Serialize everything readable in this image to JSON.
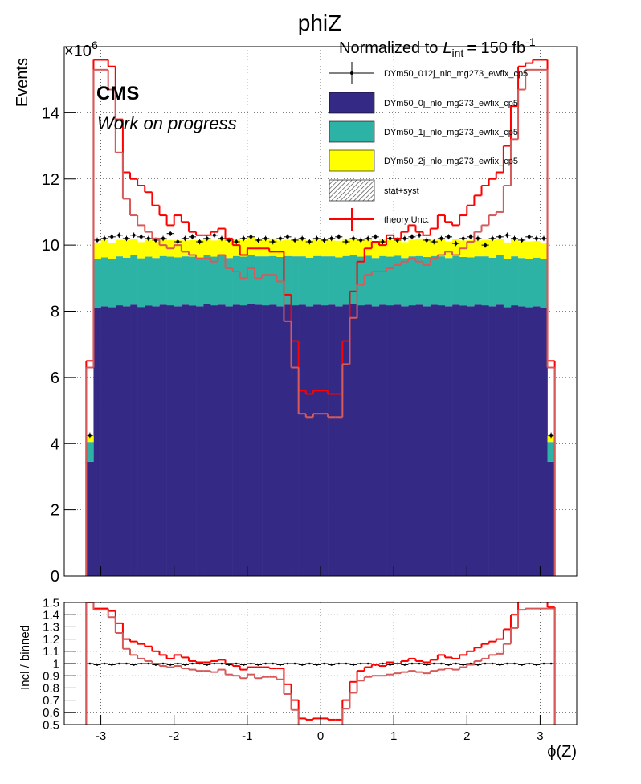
{
  "chart_data": [
    {
      "type": "histogram",
      "title": "phiZ",
      "norm_prefix": "Normalized to",
      "norm_L": "L",
      "norm_sub": "int",
      "norm_mid": "= 150 fb",
      "norm_sup": "-1",
      "multiplier": "×10",
      "multiplier_exp": "6",
      "experiment": "CMS",
      "status": "Work on progress",
      "ylabel": "Events",
      "bins": [
        -3.2,
        -3.1,
        -3.0,
        -2.9,
        -2.8,
        -2.7,
        -2.6,
        -2.5,
        -2.4,
        -2.3,
        -2.2,
        -2.1,
        -2.0,
        -1.9,
        -1.8,
        -1.7,
        -1.6,
        -1.5,
        -1.4,
        -1.3,
        -1.2,
        -1.1,
        -1.0,
        -0.9,
        -0.8,
        -0.7,
        -0.6,
        -0.5,
        -0.4,
        -0.3,
        -0.2,
        -0.1,
        0.0,
        0.1,
        0.2,
        0.3,
        0.4,
        0.5,
        0.6,
        0.7,
        0.8,
        0.9,
        1.0,
        1.1,
        1.2,
        1.3,
        1.4,
        1.5,
        1.6,
        1.7,
        1.8,
        1.9,
        2.0,
        2.1,
        2.2,
        2.3,
        2.4,
        2.5,
        2.6,
        2.7,
        2.8,
        2.9,
        3.0,
        3.1,
        3.2
      ],
      "xlim": [
        -3.5,
        3.5
      ],
      "ylim": [
        0,
        16
      ],
      "yticks": [
        0,
        2,
        4,
        6,
        8,
        10,
        12,
        14
      ],
      "grid": true,
      "series": [
        {
          "name": "DYm50_012j_nlo_mg273_ewfix_cp5",
          "style": "points",
          "color": "#000000",
          "error": 0.08,
          "values": [
            4.25,
            10.15,
            10.2,
            10.25,
            10.3,
            10.2,
            10.3,
            10.25,
            10.2,
            10.15,
            10.2,
            10.35,
            10.1,
            10.2,
            10.25,
            10.1,
            10.2,
            10.3,
            10.2,
            10.15,
            10.1,
            10.2,
            10.25,
            10.15,
            10.2,
            10.1,
            10.2,
            10.25,
            10.15,
            10.2,
            10.1,
            10.2,
            10.15,
            10.2,
            10.25,
            10.1,
            10.2,
            10.15,
            10.2,
            10.25,
            10.1,
            10.2,
            10.15,
            10.2,
            10.25,
            10.3,
            10.15,
            10.1,
            10.2,
            10.25,
            10.05,
            10.2,
            10.25,
            10.2,
            10.0,
            10.2,
            10.25,
            10.3,
            10.2,
            10.15,
            10.25,
            10.2,
            10.2,
            4.25
          ]
        },
        {
          "name": "DYm50_0j_nlo_mg273_ewfix_cp5",
          "style": "stack",
          "color": "#342a86",
          "values": [
            3.45,
            8.1,
            8.15,
            8.12,
            8.18,
            8.15,
            8.2,
            8.13,
            8.17,
            8.15,
            8.2,
            8.18,
            8.15,
            8.2,
            8.17,
            8.15,
            8.22,
            8.18,
            8.2,
            8.15,
            8.2,
            8.18,
            8.22,
            8.2,
            8.18,
            8.2,
            8.15,
            8.2,
            8.18,
            8.2,
            8.15,
            8.2,
            8.18,
            8.2,
            8.15,
            8.2,
            8.22,
            8.18,
            8.2,
            8.15,
            8.2,
            8.18,
            8.2,
            8.15,
            8.18,
            8.2,
            8.15,
            8.2,
            8.18,
            8.15,
            8.2,
            8.17,
            8.15,
            8.2,
            8.18,
            8.15,
            8.2,
            8.12,
            8.18,
            8.15,
            8.12,
            8.15,
            8.1,
            3.45
          ]
        },
        {
          "name": "DYm50_1j_nlo_mg273_ewfix_cp5",
          "style": "stack",
          "color": "#2db3a6",
          "values": [
            0.6,
            1.47,
            1.48,
            1.46,
            1.48,
            1.47,
            1.49,
            1.47,
            1.48,
            1.46,
            1.47,
            1.47,
            1.48,
            1.46,
            1.48,
            1.47,
            1.49,
            1.47,
            1.48,
            1.46,
            1.47,
            1.47,
            1.48,
            1.46,
            1.48,
            1.47,
            1.49,
            1.47,
            1.48,
            1.46,
            1.47,
            1.47,
            1.48,
            1.46,
            1.48,
            1.47,
            1.49,
            1.47,
            1.48,
            1.46,
            1.47,
            1.47,
            1.48,
            1.46,
            1.48,
            1.47,
            1.49,
            1.47,
            1.48,
            1.46,
            1.47,
            1.47,
            1.48,
            1.46,
            1.48,
            1.47,
            1.49,
            1.47,
            1.48,
            1.46,
            1.47,
            1.47,
            1.48,
            0.6
          ]
        },
        {
          "name": "DYm50_2j_nlo_mg273_ewfix_cp5",
          "style": "stack",
          "color": "#ffff00",
          "values": [
            0.2,
            0.5,
            0.52,
            0.48,
            0.5,
            0.53,
            0.5,
            0.49,
            0.51,
            0.5,
            0.52,
            0.5,
            0.52,
            0.48,
            0.5,
            0.53,
            0.5,
            0.49,
            0.51,
            0.5,
            0.52,
            0.5,
            0.52,
            0.48,
            0.5,
            0.53,
            0.5,
            0.49,
            0.51,
            0.5,
            0.52,
            0.5,
            0.52,
            0.48,
            0.5,
            0.53,
            0.5,
            0.49,
            0.51,
            0.5,
            0.52,
            0.5,
            0.52,
            0.48,
            0.5,
            0.53,
            0.5,
            0.49,
            0.51,
            0.5,
            0.52,
            0.5,
            0.52,
            0.48,
            0.5,
            0.53,
            0.5,
            0.49,
            0.51,
            0.5,
            0.52,
            0.5,
            0.49,
            0.2
          ]
        },
        {
          "name": "stat+syst",
          "style": "hatch",
          "color": "#333333"
        },
        {
          "name": "theory Unc.",
          "style": "step",
          "color": "#ff0000",
          "values": [
            6.5,
            15.6,
            15.6,
            15.4,
            13.8,
            12.2,
            12.0,
            11.8,
            11.6,
            11.2,
            10.9,
            10.6,
            10.9,
            10.7,
            10.4,
            10.3,
            10.3,
            10.4,
            10.5,
            10.2,
            10.0,
            9.7,
            9.9,
            9.9,
            9.9,
            9.8,
            9.8,
            8.5,
            7.1,
            5.6,
            5.5,
            5.6,
            5.6,
            5.5,
            5.5,
            7.1,
            8.6,
            9.5,
            9.9,
            10.1,
            10.0,
            10.3,
            10.2,
            10.4,
            10.6,
            10.4,
            10.3,
            10.5,
            10.9,
            10.7,
            10.6,
            10.9,
            11.2,
            11.5,
            11.8,
            12.0,
            12.2,
            13.0,
            14.2,
            15.4,
            15.5,
            15.6,
            15.6,
            6.5
          ]
        },
        {
          "style": "step",
          "color": "#d65a5a",
          "values": [
            6.3,
            15.3,
            15.3,
            14.7,
            12.8,
            11.4,
            10.9,
            10.6,
            10.4,
            10.2,
            10.0,
            9.9,
            10.0,
            9.8,
            9.7,
            9.6,
            9.6,
            9.5,
            9.7,
            9.3,
            9.2,
            9.0,
            9.3,
            9.0,
            9.1,
            9.1,
            8.9,
            7.7,
            6.3,
            4.9,
            4.8,
            4.9,
            4.9,
            4.8,
            4.8,
            6.4,
            7.8,
            8.8,
            9.1,
            9.2,
            9.2,
            9.3,
            9.4,
            9.5,
            9.6,
            9.5,
            9.4,
            9.6,
            9.7,
            9.8,
            9.7,
            9.9,
            10.1,
            10.4,
            10.6,
            10.9,
            11.0,
            11.8,
            13.2,
            14.7,
            15.3,
            15.3,
            15.3,
            6.3
          ]
        }
      ]
    },
    {
      "type": "histogram",
      "ylabel": "Incl / binned",
      "xlabel": "ϕ(Z)",
      "bins": [
        -3.2,
        -3.1,
        -3.0,
        -2.9,
        -2.8,
        -2.7,
        -2.6,
        -2.5,
        -2.4,
        -2.3,
        -2.2,
        -2.1,
        -2.0,
        -1.9,
        -1.8,
        -1.7,
        -1.6,
        -1.5,
        -1.4,
        -1.3,
        -1.2,
        -1.1,
        -1.0,
        -0.9,
        -0.8,
        -0.7,
        -0.6,
        -0.5,
        -0.4,
        -0.3,
        -0.2,
        -0.1,
        0.0,
        0.1,
        0.2,
        0.3,
        0.4,
        0.5,
        0.6,
        0.7,
        0.8,
        0.9,
        1.0,
        1.1,
        1.2,
        1.3,
        1.4,
        1.5,
        1.6,
        1.7,
        1.8,
        1.9,
        2.0,
        2.1,
        2.2,
        2.3,
        2.4,
        2.5,
        2.6,
        2.7,
        2.8,
        2.9,
        3.0,
        3.1,
        3.2
      ],
      "xlim": [
        -3.5,
        3.5
      ],
      "xticks": [
        -3,
        -2,
        -1,
        0,
        1,
        2,
        3
      ],
      "ylim": [
        0.5,
        1.5
      ],
      "yticks": [
        0.5,
        0.6,
        0.7,
        0.8,
        0.9,
        1,
        1.1,
        1.2,
        1.3,
        1.4,
        1.5
      ],
      "grid": true,
      "series": [
        {
          "style": "points",
          "color": "#000000",
          "values": [
            1.0,
            0.99,
            1.0,
            0.99,
            1.0,
            1.0,
            0.99,
            1.0,
            1.0,
            0.99,
            1.0,
            0.99,
            1.0,
            0.99,
            1.0,
            1.0,
            0.99,
            1.0,
            1.0,
            0.99,
            1.0,
            0.99,
            1.0,
            0.99,
            1.0,
            1.0,
            0.99,
            1.0,
            1.0,
            0.99,
            1.0,
            0.99,
            1.0,
            0.99,
            1.0,
            1.0,
            0.99,
            1.0,
            1.0,
            0.99,
            1.0,
            0.99,
            1.0,
            0.99,
            1.0,
            1.0,
            0.99,
            1.0,
            1.0,
            0.99,
            1.0,
            0.99,
            1.0,
            0.99,
            1.0,
            1.0,
            0.99,
            1.0,
            1.0,
            0.99,
            1.0,
            0.99,
            1.0,
            1.0
          ]
        },
        {
          "style": "step",
          "color": "#ff0000",
          "values": [
            1.55,
            1.45,
            1.45,
            1.43,
            1.33,
            1.2,
            1.18,
            1.16,
            1.14,
            1.1,
            1.07,
            1.04,
            1.07,
            1.05,
            1.02,
            1.01,
            1.01,
            1.02,
            1.03,
            1.0,
            0.98,
            0.95,
            0.97,
            0.97,
            0.97,
            0.96,
            0.96,
            0.83,
            0.7,
            0.55,
            0.54,
            0.55,
            0.55,
            0.54,
            0.54,
            0.7,
            0.85,
            0.94,
            0.97,
            0.99,
            0.98,
            1.01,
            1.0,
            1.02,
            1.04,
            1.02,
            1.01,
            1.03,
            1.07,
            1.05,
            1.04,
            1.07,
            1.1,
            1.13,
            1.16,
            1.18,
            1.2,
            1.28,
            1.4,
            1.52,
            1.52,
            1.52,
            1.52,
            1.46
          ]
        },
        {
          "style": "step",
          "color": "#d65a5a",
          "values": [
            1.5,
            1.44,
            1.44,
            1.38,
            1.25,
            1.12,
            1.07,
            1.04,
            1.02,
            1.0,
            0.98,
            0.97,
            0.98,
            0.96,
            0.95,
            0.94,
            0.94,
            0.93,
            0.95,
            0.91,
            0.9,
            0.88,
            0.91,
            0.88,
            0.89,
            0.89,
            0.87,
            0.75,
            0.62,
            0.48,
            0.47,
            0.48,
            0.48,
            0.47,
            0.47,
            0.63,
            0.76,
            0.86,
            0.89,
            0.9,
            0.9,
            0.91,
            0.92,
            0.93,
            0.94,
            0.93,
            0.92,
            0.94,
            0.95,
            0.96,
            0.95,
            0.97,
            0.99,
            1.02,
            1.04,
            1.07,
            1.08,
            1.16,
            1.29,
            1.44,
            1.45,
            1.45,
            1.45,
            1.45
          ]
        }
      ]
    }
  ]
}
